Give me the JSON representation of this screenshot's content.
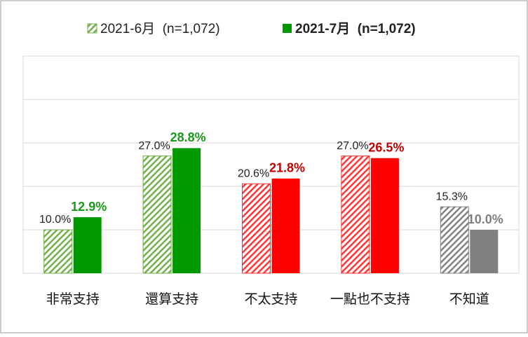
{
  "chart_data": {
    "type": "bar",
    "categories": [
      "非常支持",
      "還算支持",
      "不太支持",
      "一點也不支持",
      "不知道"
    ],
    "series": [
      {
        "name": "2021-6月  (n=1,072)",
        "color": "#70ad47",
        "hatched": true,
        "colors": [
          "#70ad47",
          "#70ad47",
          "#ff3333",
          "#ff3333",
          "#808080"
        ],
        "label_colors": [
          "#222222",
          "#222222",
          "#222222",
          "#222222",
          "#222222"
        ],
        "values": [
          10.0,
          27.0,
          20.6,
          27.0,
          15.3
        ],
        "value_labels": [
          "10.0%",
          "27.0%",
          "20.6%",
          "27.0%",
          "15.3%"
        ]
      },
      {
        "name": "2021-7月  (n=1,072)",
        "color": "#009900",
        "hatched": false,
        "colors": [
          "#009900",
          "#009900",
          "#ff0000",
          "#ff0000",
          "#808080"
        ],
        "label_colors": [
          "#1a9a1a",
          "#1a9a1a",
          "#c00000",
          "#c00000",
          "#808080"
        ],
        "values": [
          12.9,
          28.8,
          21.8,
          26.5,
          10.0
        ],
        "value_labels": [
          "12.9%",
          "28.8%",
          "21.8%",
          "26.5%",
          "10.0%"
        ]
      }
    ],
    "ylim": [
      0,
      50
    ],
    "yticks": [
      0,
      10,
      20,
      30,
      40,
      50
    ],
    "grid": true
  }
}
